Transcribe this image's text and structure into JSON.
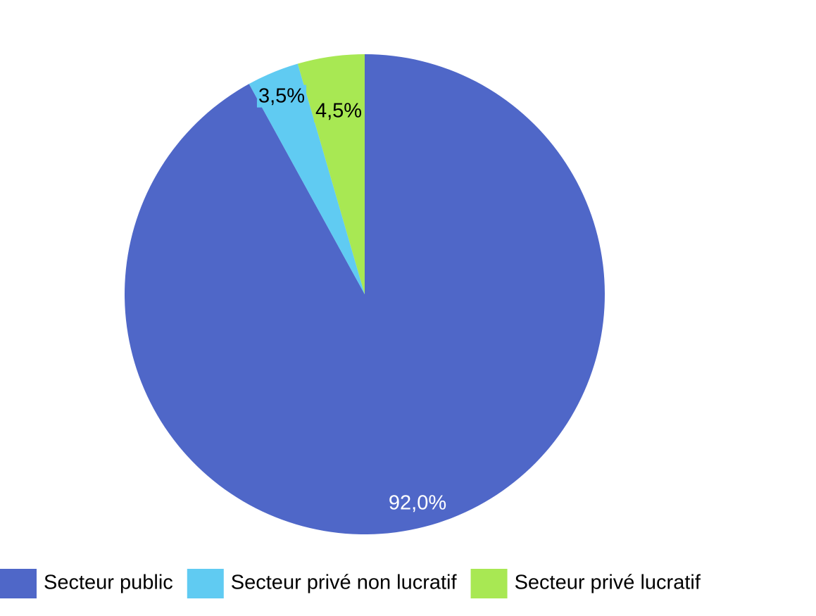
{
  "chart_data": {
    "type": "pie",
    "categories": [
      "Secteur public",
      "Secteur privé non lucratif",
      "Secteur privé lucratif"
    ],
    "values": [
      92.0,
      3.5,
      4.5
    ],
    "value_labels": [
      "92,0%",
      "3,5%",
      "4,5%"
    ],
    "colors": [
      "#4f67c8",
      "#60cbf2",
      "#a8e853"
    ],
    "legend": "bottom"
  }
}
